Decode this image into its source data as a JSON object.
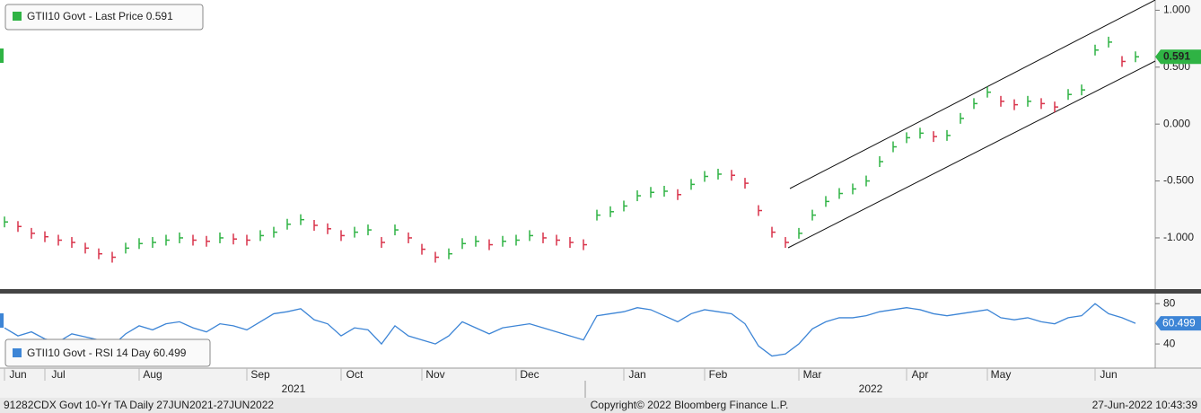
{
  "chart_data": [
    {
      "type": "tick",
      "legend": "GTII10 Govt - Last Price 0.591",
      "ylim": [
        -1.45,
        1.09
      ],
      "yticks": [
        {
          "value": -1,
          "label": "-1.000"
        },
        {
          "value": -0.5,
          "label": "-0.500"
        },
        {
          "value": 0,
          "label": "0.000"
        },
        {
          "value": 0.5,
          "label": "0.500"
        },
        {
          "value": 1,
          "label": "1.000"
        }
      ],
      "series": [
        {
          "name": "GTII10 Govt",
          "color": "#2fb344",
          "up_color": "#2fb344",
          "down_color": "#d9334a",
          "values": [
            -0.86,
            -0.9,
            -0.96,
            -0.99,
            -1.02,
            -1.04,
            -1.09,
            -1.14,
            -1.17,
            -1.09,
            -1.05,
            -1.04,
            -1.02,
            -1.0,
            -1.02,
            -1.03,
            -1.0,
            -1.01,
            -1.02,
            -0.98,
            -0.95,
            -0.88,
            -0.84,
            -0.89,
            -0.92,
            -0.98,
            -0.95,
            -0.93,
            -1.04,
            -0.93,
            -1.0,
            -1.1,
            -1.17,
            -1.14,
            -1.05,
            -1.03,
            -1.06,
            -1.03,
            -1.02,
            -0.98,
            -1.0,
            -1.02,
            -1.04,
            -1.06,
            -0.8,
            -0.77,
            -0.72,
            -0.63,
            -0.6,
            -0.59,
            -0.62,
            -0.53,
            -0.46,
            -0.44,
            -0.45,
            -0.52,
            -0.76,
            -0.95,
            -1.04,
            -0.96,
            -0.8,
            -0.68,
            -0.61,
            -0.57,
            -0.5,
            -0.33,
            -0.2,
            -0.12,
            -0.08,
            -0.11,
            -0.1,
            0.05,
            0.18,
            0.28,
            0.2,
            0.17,
            0.2,
            0.18,
            0.15,
            0.26,
            0.3,
            0.65,
            0.72,
            0.55,
            0.591
          ]
        }
      ]
    },
    {
      "type": "line",
      "legend": "GTII10 Govt - RSI 14 Day 60.499",
      "ylim": [
        16,
        90
      ],
      "yticks": [
        40,
        80
      ],
      "categories": [
        null,
        "Jun",
        null,
        null,
        "Jul",
        null,
        null,
        null,
        null,
        null,
        null,
        "Aug",
        null,
        null,
        null,
        null,
        null,
        null,
        null,
        "Sep",
        null,
        null,
        null,
        null,
        null,
        null,
        "Oct",
        null,
        null,
        null,
        null,
        null,
        "Nov",
        null,
        null,
        null,
        null,
        null,
        null,
        "Dec",
        null,
        null,
        null,
        null,
        null,
        null,
        null,
        "Jan",
        null,
        null,
        null,
        null,
        null,
        "Feb",
        null,
        null,
        null,
        null,
        null,
        null,
        "Mar",
        null,
        null,
        null,
        null,
        null,
        null,
        null,
        "Apr",
        null,
        null,
        null,
        null,
        null,
        "May",
        null,
        null,
        null,
        null,
        null,
        null,
        null,
        "Jun",
        null,
        null
      ],
      "series": [
        {
          "name": "GTII10 Govt - RSI 14 Day",
          "color": "#3d85d6",
          "values": [
            56,
            48,
            52,
            45,
            42,
            50,
            47,
            44,
            38,
            50,
            58,
            54,
            60,
            62,
            56,
            52,
            60,
            58,
            54,
            62,
            70,
            72,
            75,
            64,
            60,
            48,
            56,
            54,
            40,
            58,
            48,
            44,
            40,
            48,
            62,
            56,
            50,
            56,
            58,
            60,
            56,
            52,
            48,
            44,
            68,
            70,
            72,
            76,
            74,
            68,
            62,
            70,
            74,
            72,
            70,
            60,
            38,
            28,
            30,
            40,
            55,
            62,
            66,
            66,
            68,
            72,
            74,
            76,
            74,
            70,
            68,
            70,
            72,
            74,
            66,
            64,
            66,
            62,
            60,
            66,
            68,
            80,
            70,
            66,
            60.499
          ]
        }
      ],
      "years": [
        "2021",
        "2022"
      ]
    }
  ],
  "footer": {
    "left": "91282CDX Govt 10-Yr TA  Daily 27JUN2021-27JUN2022",
    "center": "Copyright© 2022 Bloomberg Finance L.P.",
    "right": "27-Jun-2022 10:43:39"
  }
}
